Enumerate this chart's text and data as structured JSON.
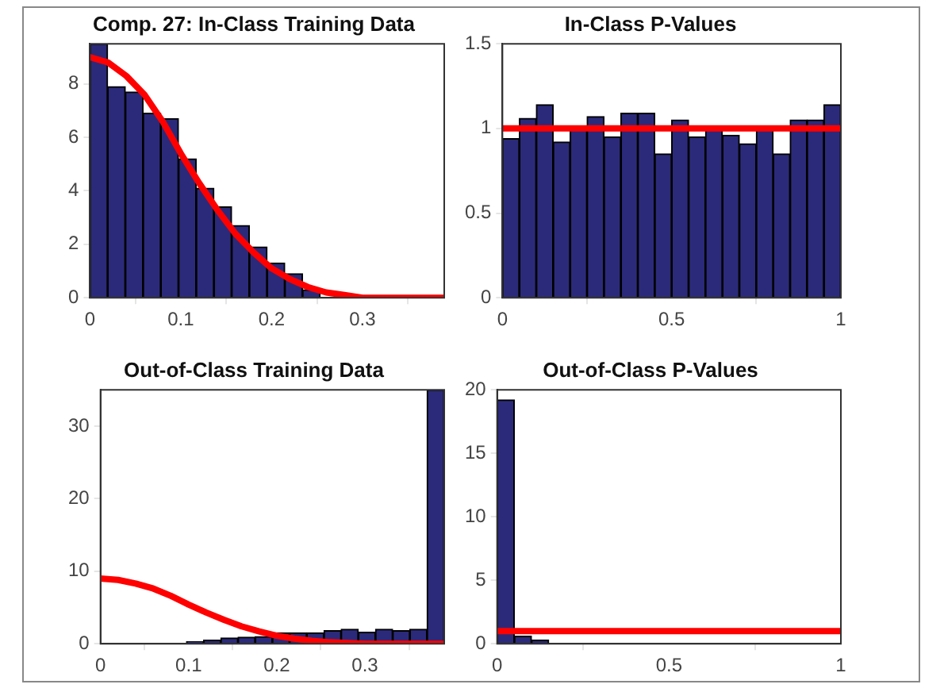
{
  "chart_data": [
    {
      "type": "histogram",
      "title": "Comp. 27: In-Class Training Data",
      "xlim": [
        0,
        0.39
      ],
      "ylim": [
        0,
        9.5
      ],
      "xticks": [
        0,
        0.1,
        0.2,
        0.3
      ],
      "yticks": [
        0,
        2,
        4,
        6,
        8
      ],
      "series": [
        {
          "color": "#2b2a7a",
          "bins": [
            0,
            0.0195,
            0.039,
            0.0585,
            0.078,
            0.0975,
            0.117,
            0.1365,
            0.156,
            0.1755,
            0.195,
            0.2145,
            0.234,
            0.2535,
            0.273,
            0.2925,
            0.312,
            0.3315,
            0.351,
            0.3705,
            0.39
          ],
          "values": [
            9.5,
            7.9,
            7.7,
            6.9,
            6.7,
            5.2,
            4.1,
            3.4,
            2.7,
            1.9,
            1.3,
            0.9,
            0.3,
            null,
            null,
            null,
            null,
            null,
            null,
            null
          ]
        },
        {
          "type": "line",
          "color": "#ff0000",
          "x": [
            0,
            0.02,
            0.04,
            0.06,
            0.08,
            0.1,
            0.12,
            0.14,
            0.16,
            0.18,
            0.2,
            0.22,
            0.24,
            0.26,
            0.28,
            0.3,
            0.35,
            0.39
          ],
          "values": [
            9.0,
            8.8,
            8.3,
            7.6,
            6.6,
            5.4,
            4.3,
            3.3,
            2.4,
            1.7,
            1.1,
            0.7,
            0.4,
            0.2,
            0.1,
            0,
            0,
            0
          ]
        }
      ]
    },
    {
      "type": "histogram",
      "title": "In-Class P-Values",
      "xlim": [
        0,
        1
      ],
      "ylim": [
        0,
        1.5
      ],
      "xticks": [
        0,
        0.5,
        1
      ],
      "yticks": [
        0,
        0.5,
        1,
        1.5
      ],
      "series": [
        {
          "color": "#2b2a7a",
          "bins": [
            0,
            0.05,
            0.1,
            0.15,
            0.2,
            0.25,
            0.3,
            0.35,
            0.4,
            0.45,
            0.5,
            0.55,
            0.6,
            0.65,
            0.7,
            0.75,
            0.8,
            0.85,
            0.9,
            0.95,
            1
          ],
          "values": [
            0.94,
            1.06,
            1.14,
            0.92,
            1.0,
            1.07,
            0.95,
            1.09,
            1.09,
            0.85,
            1.05,
            0.95,
            1.0,
            0.96,
            0.91,
            1.0,
            0.85,
            1.05,
            1.05,
            1.14
          ]
        },
        {
          "type": "line",
          "color": "#ff0000",
          "x": [
            0,
            1
          ],
          "values": [
            1,
            1
          ]
        }
      ]
    },
    {
      "type": "histogram",
      "title": "Out-of-Class Training Data",
      "xlim": [
        0,
        0.39
      ],
      "ylim": [
        0,
        35
      ],
      "xticks": [
        0,
        0.1,
        0.2,
        0.3
      ],
      "yticks": [
        0,
        10,
        20,
        30
      ],
      "series": [
        {
          "color": "#2b2a7a",
          "bins": [
            0,
            0.0195,
            0.039,
            0.0585,
            0.078,
            0.0975,
            0.117,
            0.1365,
            0.156,
            0.1755,
            0.195,
            0.2145,
            0.234,
            0.2535,
            0.273,
            0.2925,
            0.312,
            0.3315,
            0.351,
            0.3705,
            0.39
          ],
          "values": [
            0,
            0,
            0,
            0,
            0,
            0.3,
            0.5,
            0.8,
            0.9,
            1.0,
            1.5,
            1.5,
            1.5,
            1.8,
            2.0,
            1.6,
            2.0,
            1.8,
            2.0,
            35
          ]
        },
        {
          "type": "line",
          "color": "#ff0000",
          "x": [
            0,
            0.02,
            0.04,
            0.06,
            0.08,
            0.1,
            0.12,
            0.14,
            0.16,
            0.18,
            0.2,
            0.22,
            0.24,
            0.26,
            0.28,
            0.3,
            0.35,
            0.39
          ],
          "values": [
            9.0,
            8.8,
            8.3,
            7.6,
            6.6,
            5.4,
            4.3,
            3.3,
            2.4,
            1.7,
            1.1,
            0.7,
            0.4,
            0.2,
            0.1,
            0,
            0,
            0
          ]
        }
      ]
    },
    {
      "type": "histogram",
      "title": "Out-of-Class P-Values",
      "xlim": [
        0,
        1
      ],
      "ylim": [
        0,
        20
      ],
      "xticks": [
        0,
        0.5,
        1
      ],
      "yticks": [
        0,
        5,
        10,
        15,
        20
      ],
      "series": [
        {
          "color": "#2b2a7a",
          "bins": [
            0,
            0.05,
            0.1,
            0.15,
            0.2,
            0.25,
            0.3,
            0.35,
            0.4,
            0.45,
            0.5,
            0.55,
            0.6,
            0.65,
            0.7,
            0.75,
            0.8,
            0.85,
            0.9,
            0.95,
            1
          ],
          "values": [
            19.2,
            0.6,
            0.3,
            0,
            0,
            0,
            0,
            0,
            0,
            0,
            0,
            0,
            0,
            0,
            0,
            0,
            0,
            0,
            0,
            0
          ]
        },
        {
          "type": "line",
          "color": "#ff0000",
          "x": [
            0,
            1
          ],
          "values": [
            1,
            1
          ]
        }
      ]
    }
  ]
}
